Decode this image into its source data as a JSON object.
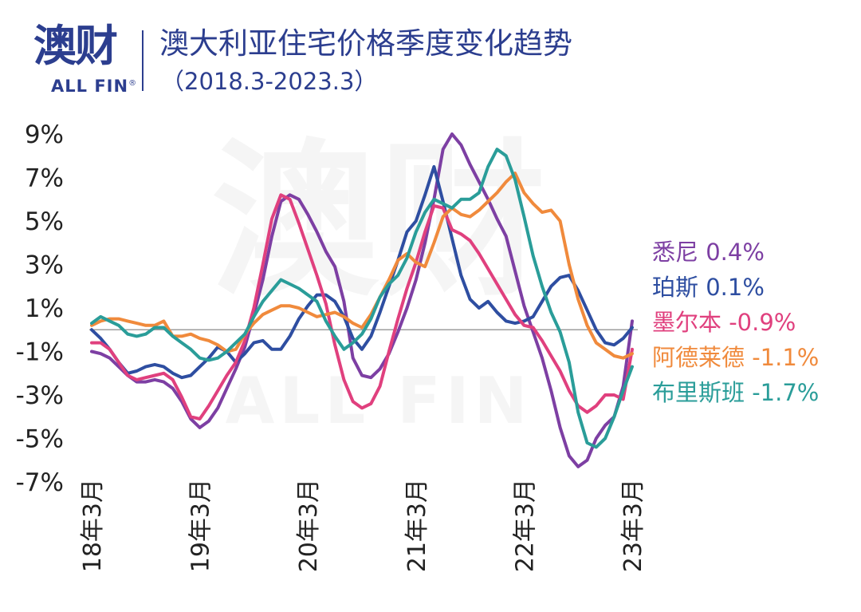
{
  "header": {
    "brand_cn": "澳财",
    "brand_en": "ALL FIN",
    "brand_mark": "®",
    "title": "澳大利亚住宅价格季度变化趋势",
    "subtitle": "（2018.3-2023.3）"
  },
  "watermark": {
    "cn": "澳财",
    "en": "ALL FIN"
  },
  "chart_data": {
    "type": "line",
    "title": "澳大利亚住宅价格季度变化趋势",
    "subtitle": "（2018.3-2023.3）",
    "xlabel": "",
    "ylabel": "",
    "ylim": [
      -7,
      9
    ],
    "xlim": [
      0,
      60
    ],
    "y_ticks": [
      9,
      7,
      5,
      3,
      1,
      -1,
      -3,
      -5,
      -7
    ],
    "y_tick_labels": [
      "9%",
      "7%",
      "5%",
      "3%",
      "1%",
      "-1%",
      "-3%",
      "-5%",
      "-7%"
    ],
    "x_ticks": [
      0,
      12,
      24,
      36,
      48,
      60
    ],
    "x_tick_labels": [
      "18年3月",
      "19年3月",
      "20年3月",
      "21年3月",
      "22年3月",
      "23年3月"
    ],
    "x_unit": "months since 18年3月",
    "baseline": 0,
    "grid": false,
    "legend_placement": "right, end-of-line labels",
    "series": [
      {
        "name": "悉尼",
        "label": "悉尼 0.4%",
        "color": "#7d3fa3",
        "points": [
          [
            0,
            -1.0
          ],
          [
            1,
            -1.1
          ],
          [
            2,
            -1.3
          ],
          [
            3,
            -1.7
          ],
          [
            4,
            -2.1
          ],
          [
            5,
            -2.4
          ],
          [
            6,
            -2.4
          ],
          [
            7,
            -2.3
          ],
          [
            8,
            -2.4
          ],
          [
            9,
            -2.7
          ],
          [
            10,
            -3.3
          ],
          [
            11,
            -4.1
          ],
          [
            12,
            -4.5
          ],
          [
            13,
            -4.2
          ],
          [
            14,
            -3.6
          ],
          [
            15,
            -2.7
          ],
          [
            16,
            -1.8
          ],
          [
            17,
            -0.8
          ],
          [
            18,
            0.7
          ],
          [
            19,
            2.3
          ],
          [
            20,
            4.3
          ],
          [
            21,
            5.9
          ],
          [
            22,
            6.2
          ],
          [
            23,
            6.0
          ],
          [
            24,
            5.3
          ],
          [
            25,
            4.5
          ],
          [
            26,
            3.6
          ],
          [
            27,
            2.9
          ],
          [
            28,
            1.3
          ],
          [
            29,
            -1.3
          ],
          [
            30,
            -2.1
          ],
          [
            31,
            -2.2
          ],
          [
            32,
            -1.8
          ],
          [
            33,
            -1.1
          ],
          [
            34,
            -0.1
          ],
          [
            35,
            1.0
          ],
          [
            36,
            2.3
          ],
          [
            37,
            4.0
          ],
          [
            38,
            6.0
          ],
          [
            39,
            8.3
          ],
          [
            40,
            9.0
          ],
          [
            41,
            8.5
          ],
          [
            42,
            7.6
          ],
          [
            43,
            6.8
          ],
          [
            44,
            6.0
          ],
          [
            45,
            5.1
          ],
          [
            46,
            4.3
          ],
          [
            47,
            2.7
          ],
          [
            48,
            1.1
          ],
          [
            49,
            -0.1
          ],
          [
            50,
            -1.3
          ],
          [
            51,
            -2.8
          ],
          [
            52,
            -4.5
          ],
          [
            53,
            -5.8
          ],
          [
            54,
            -6.3
          ],
          [
            55,
            -6.0
          ],
          [
            56,
            -5.0
          ],
          [
            57,
            -4.4
          ],
          [
            58,
            -4.0
          ],
          [
            59,
            -2.6
          ],
          [
            60,
            0.4
          ]
        ]
      },
      {
        "name": "珀斯",
        "label": "珀斯 0.1%",
        "color": "#2e4ea1",
        "points": [
          [
            0,
            0.0
          ],
          [
            1,
            -0.4
          ],
          [
            2,
            -0.9
          ],
          [
            3,
            -1.5
          ],
          [
            4,
            -2.0
          ],
          [
            5,
            -1.9
          ],
          [
            6,
            -1.7
          ],
          [
            7,
            -1.6
          ],
          [
            8,
            -1.7
          ],
          [
            9,
            -2.0
          ],
          [
            10,
            -2.2
          ],
          [
            11,
            -2.1
          ],
          [
            12,
            -1.7
          ],
          [
            13,
            -1.3
          ],
          [
            14,
            -0.8
          ],
          [
            15,
            -1.0
          ],
          [
            16,
            -1.5
          ],
          [
            17,
            -1.1
          ],
          [
            18,
            -0.6
          ],
          [
            19,
            -0.5
          ],
          [
            20,
            -0.9
          ],
          [
            21,
            -0.9
          ],
          [
            22,
            -0.3
          ],
          [
            23,
            0.5
          ],
          [
            24,
            1.1
          ],
          [
            25,
            1.6
          ],
          [
            26,
            1.6
          ],
          [
            27,
            1.3
          ],
          [
            28,
            0.6
          ],
          [
            29,
            -0.4
          ],
          [
            30,
            -0.9
          ],
          [
            31,
            -0.3
          ],
          [
            32,
            0.8
          ],
          [
            33,
            2.0
          ],
          [
            34,
            3.2
          ],
          [
            35,
            4.5
          ],
          [
            36,
            5.0
          ],
          [
            37,
            6.2
          ],
          [
            38,
            7.5
          ],
          [
            39,
            5.9
          ],
          [
            40,
            4.2
          ],
          [
            41,
            2.5
          ],
          [
            42,
            1.4
          ],
          [
            43,
            1.0
          ],
          [
            44,
            1.3
          ],
          [
            45,
            0.8
          ],
          [
            46,
            0.4
          ],
          [
            47,
            0.3
          ],
          [
            48,
            0.4
          ],
          [
            49,
            0.6
          ],
          [
            50,
            1.3
          ],
          [
            51,
            2.0
          ],
          [
            52,
            2.4
          ],
          [
            53,
            2.5
          ],
          [
            54,
            1.8
          ],
          [
            55,
            0.9
          ],
          [
            56,
            0.0
          ],
          [
            57,
            -0.6
          ],
          [
            58,
            -0.7
          ],
          [
            59,
            -0.4
          ],
          [
            60,
            0.1
          ]
        ]
      },
      {
        "name": "墨尔本",
        "label": "墨尔本 -0.9%",
        "color": "#e0407e",
        "points": [
          [
            0,
            -0.6
          ],
          [
            1,
            -0.6
          ],
          [
            2,
            -0.9
          ],
          [
            3,
            -1.5
          ],
          [
            4,
            -2.1
          ],
          [
            5,
            -2.3
          ],
          [
            6,
            -2.2
          ],
          [
            7,
            -2.1
          ],
          [
            8,
            -2.0
          ],
          [
            9,
            -2.3
          ],
          [
            10,
            -3.1
          ],
          [
            11,
            -4.0
          ],
          [
            12,
            -4.1
          ],
          [
            13,
            -3.5
          ],
          [
            14,
            -2.8
          ],
          [
            15,
            -2.1
          ],
          [
            16,
            -1.5
          ],
          [
            17,
            -0.5
          ],
          [
            18,
            1.0
          ],
          [
            19,
            3.0
          ],
          [
            20,
            5.1
          ],
          [
            21,
            6.2
          ],
          [
            22,
            6.0
          ],
          [
            23,
            4.9
          ],
          [
            24,
            3.7
          ],
          [
            25,
            2.5
          ],
          [
            26,
            1.2
          ],
          [
            27,
            -0.7
          ],
          [
            28,
            -2.3
          ],
          [
            29,
            -3.3
          ],
          [
            30,
            -3.6
          ],
          [
            31,
            -3.4
          ],
          [
            32,
            -2.6
          ],
          [
            33,
            -1.0
          ],
          [
            34,
            0.5
          ],
          [
            35,
            1.9
          ],
          [
            36,
            3.1
          ],
          [
            37,
            4.5
          ],
          [
            38,
            5.7
          ],
          [
            39,
            5.6
          ],
          [
            40,
            4.6
          ],
          [
            41,
            4.4
          ],
          [
            42,
            4.1
          ],
          [
            43,
            3.5
          ],
          [
            44,
            2.8
          ],
          [
            45,
            2.1
          ],
          [
            46,
            1.4
          ],
          [
            47,
            0.7
          ],
          [
            48,
            0.2
          ],
          [
            49,
            0.1
          ],
          [
            50,
            -0.5
          ],
          [
            51,
            -1.2
          ],
          [
            52,
            -1.9
          ],
          [
            53,
            -2.8
          ],
          [
            54,
            -3.5
          ],
          [
            55,
            -3.8
          ],
          [
            56,
            -3.5
          ],
          [
            57,
            -3.0
          ],
          [
            58,
            -3.0
          ],
          [
            59,
            -3.2
          ],
          [
            60,
            -0.9
          ]
        ]
      },
      {
        "name": "阿德莱德",
        "label": "阿德莱德 -1.1%",
        "color": "#f08a3c",
        "points": [
          [
            0,
            0.2
          ],
          [
            1,
            0.4
          ],
          [
            2,
            0.5
          ],
          [
            3,
            0.5
          ],
          [
            4,
            0.4
          ],
          [
            5,
            0.3
          ],
          [
            6,
            0.2
          ],
          [
            7,
            0.2
          ],
          [
            8,
            0.4
          ],
          [
            9,
            -0.3
          ],
          [
            10,
            -0.3
          ],
          [
            11,
            -0.2
          ],
          [
            12,
            -0.4
          ],
          [
            13,
            -0.5
          ],
          [
            14,
            -0.7
          ],
          [
            15,
            -1.0
          ],
          [
            16,
            -0.9
          ],
          [
            17,
            -0.2
          ],
          [
            18,
            0.3
          ],
          [
            19,
            0.7
          ],
          [
            20,
            0.9
          ],
          [
            21,
            1.1
          ],
          [
            22,
            1.1
          ],
          [
            23,
            1.0
          ],
          [
            24,
            0.8
          ],
          [
            25,
            0.6
          ],
          [
            26,
            0.7
          ],
          [
            27,
            0.8
          ],
          [
            28,
            0.6
          ],
          [
            29,
            0.3
          ],
          [
            30,
            0.1
          ],
          [
            31,
            0.7
          ],
          [
            32,
            1.5
          ],
          [
            33,
            2.3
          ],
          [
            34,
            3.2
          ],
          [
            35,
            3.5
          ],
          [
            36,
            3.1
          ],
          [
            37,
            2.9
          ],
          [
            38,
            4.0
          ],
          [
            39,
            5.2
          ],
          [
            40,
            5.6
          ],
          [
            41,
            5.3
          ],
          [
            42,
            5.2
          ],
          [
            43,
            5.5
          ],
          [
            44,
            5.9
          ],
          [
            45,
            6.3
          ],
          [
            46,
            6.8
          ],
          [
            47,
            7.2
          ],
          [
            48,
            6.3
          ],
          [
            49,
            5.8
          ],
          [
            50,
            5.4
          ],
          [
            51,
            5.5
          ],
          [
            52,
            5.0
          ],
          [
            53,
            3.0
          ],
          [
            54,
            1.4
          ],
          [
            55,
            0.2
          ],
          [
            56,
            -0.6
          ],
          [
            57,
            -0.9
          ],
          [
            58,
            -1.2
          ],
          [
            59,
            -1.3
          ],
          [
            60,
            -1.1
          ]
        ]
      },
      {
        "name": "布里斯班",
        "label": "布里斯班 -1.7%",
        "color": "#2a9d99",
        "points": [
          [
            0,
            0.3
          ],
          [
            1,
            0.6
          ],
          [
            2,
            0.4
          ],
          [
            3,
            0.2
          ],
          [
            4,
            -0.2
          ],
          [
            5,
            -0.3
          ],
          [
            6,
            -0.2
          ],
          [
            7,
            0.1
          ],
          [
            8,
            0.1
          ],
          [
            9,
            -0.3
          ],
          [
            10,
            -0.6
          ],
          [
            11,
            -0.9
          ],
          [
            12,
            -1.3
          ],
          [
            13,
            -1.4
          ],
          [
            14,
            -1.3
          ],
          [
            15,
            -1.0
          ],
          [
            16,
            -0.6
          ],
          [
            17,
            -0.2
          ],
          [
            18,
            0.6
          ],
          [
            19,
            1.3
          ],
          [
            20,
            1.8
          ],
          [
            21,
            2.3
          ],
          [
            22,
            2.1
          ],
          [
            23,
            1.9
          ],
          [
            24,
            1.6
          ],
          [
            25,
            1.3
          ],
          [
            26,
            0.4
          ],
          [
            27,
            -0.3
          ],
          [
            28,
            -0.9
          ],
          [
            29,
            -0.6
          ],
          [
            30,
            -0.2
          ],
          [
            31,
            0.5
          ],
          [
            32,
            1.5
          ],
          [
            33,
            2.1
          ],
          [
            34,
            2.5
          ],
          [
            35,
            3.3
          ],
          [
            36,
            4.5
          ],
          [
            37,
            5.4
          ],
          [
            38,
            6.0
          ],
          [
            39,
            5.8
          ],
          [
            40,
            5.6
          ],
          [
            41,
            6.0
          ],
          [
            42,
            6.0
          ],
          [
            43,
            6.3
          ],
          [
            44,
            7.5
          ],
          [
            45,
            8.3
          ],
          [
            46,
            8.0
          ],
          [
            47,
            6.9
          ],
          [
            48,
            5.2
          ],
          [
            49,
            3.4
          ],
          [
            50,
            2.0
          ],
          [
            51,
            0.8
          ],
          [
            52,
            -0.1
          ],
          [
            53,
            -1.5
          ],
          [
            54,
            -3.8
          ],
          [
            55,
            -5.2
          ],
          [
            56,
            -5.4
          ],
          [
            57,
            -5.0
          ],
          [
            58,
            -4.0
          ],
          [
            59,
            -2.8
          ],
          [
            60,
            -1.7
          ]
        ]
      }
    ]
  }
}
